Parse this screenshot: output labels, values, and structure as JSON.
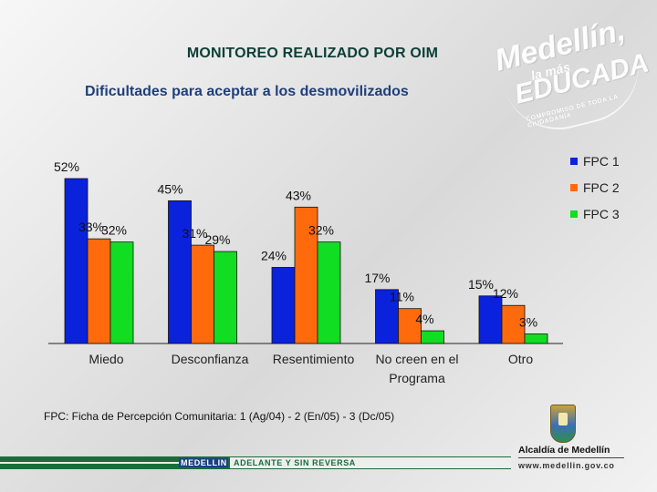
{
  "header": {
    "title": "MONITOREO  REALIZADO POR OIM",
    "subtitle": "Dificultades para aceptar a los desmovilizados"
  },
  "colors": {
    "fpc1": "#0a22dc",
    "fpc2": "#ff6a0d",
    "fpc3": "#11dd22",
    "title_green": "#0b3f36",
    "subtitle_blue": "#1f3f7a"
  },
  "chart_data": {
    "type": "bar",
    "title": "Dificultades para aceptar a los desmovilizados",
    "categories": [
      "Miedo",
      "Desconfianza",
      "Resentimiento",
      "No creen en el Programa",
      "Otro"
    ],
    "category_lines": [
      [
        "Miedo"
      ],
      [
        "Desconfianza"
      ],
      [
        "Resentimiento"
      ],
      [
        "No creen en el",
        "Programa"
      ],
      [
        "Otro"
      ]
    ],
    "series": [
      {
        "name": "FPC 1",
        "values": [
          52,
          45,
          24,
          17,
          15
        ]
      },
      {
        "name": "FPC 2",
        "values": [
          33,
          31,
          43,
          11,
          12
        ]
      },
      {
        "name": "FPC 3",
        "values": [
          32,
          29,
          32,
          4,
          3
        ]
      }
    ],
    "value_suffix": "%",
    "ylim": [
      0,
      52
    ],
    "grid": false,
    "legend_position": "right",
    "xlabel": "",
    "ylabel": ""
  },
  "footnote": "FPC: Ficha de Percepción Comunitaria: 1 (Ag/04) - 2 (En/05) - 3 (Dc/05)",
  "bottom_bar": {
    "city": "MEDELLIN",
    "slogan": "ADELANTE Y SIN REVERSA"
  },
  "watermark": {
    "brand": "Medellín,",
    "line2": "la más",
    "line3": "EDUCADA",
    "ring_text": "COMPROMISO DE TODA LA CIUDADANÍA"
  },
  "logo": {
    "name": "Alcaldía de Medellín",
    "website": "www.medellin.gov.co"
  }
}
